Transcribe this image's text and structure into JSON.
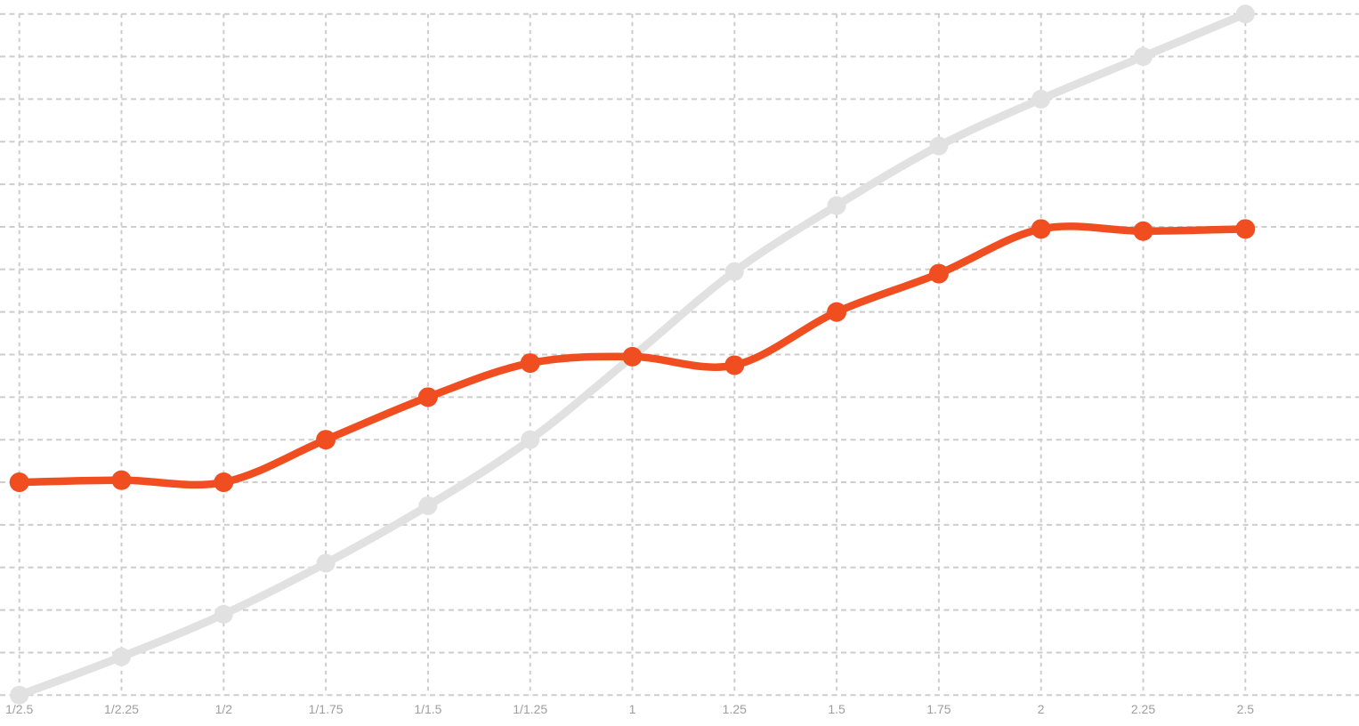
{
  "chart_data": {
    "type": "line",
    "title": "",
    "subtitle": "",
    "xlabel": "",
    "ylabel": "",
    "categories": [
      "1/2.5",
      "1/2.25",
      "1/2",
      "1/1.75",
      "1/1.5",
      "1/1.25",
      "1",
      "1.25",
      "1.5",
      "1.75",
      "2",
      "2.25",
      "2.5"
    ],
    "series": [
      {
        "name": "gray reference curve",
        "color": "#E1E1E1",
        "line_width": 9,
        "point_radius": 10.5,
        "values": [
          0,
          0.9,
          1.9,
          3.1,
          4.45,
          6.0,
          7.95,
          9.95,
          11.5,
          12.9,
          14.0,
          15.0,
          16.0
        ]
      },
      {
        "name": "orange curve",
        "color": "#F04E20",
        "line_width": 8.5,
        "point_radius": 11,
        "values": [
          5.0,
          5.05,
          5.0,
          6.0,
          7.0,
          7.8,
          7.95,
          7.75,
          9.0,
          9.9,
          10.95,
          10.9,
          10.95
        ]
      }
    ],
    "ylim": [
      0,
      16
    ],
    "y_gridline_step": 1,
    "y_axis_labels": "none",
    "x_axis_labels": "bottom",
    "legend": "none",
    "grid": "dashed",
    "smoothing": "catmull-rom",
    "notes": "y values measured in horizontal-gridline units: bottom gridline = 0, top gridline = 16; no y-axis tick labels are shown in the image"
  },
  "colors": {
    "background": "#FFFFFF",
    "grid": "#CDCDCD",
    "tick_label": "#9E9E9E",
    "orange_series": "#F04E20",
    "gray_series": "#E1E1E1"
  }
}
